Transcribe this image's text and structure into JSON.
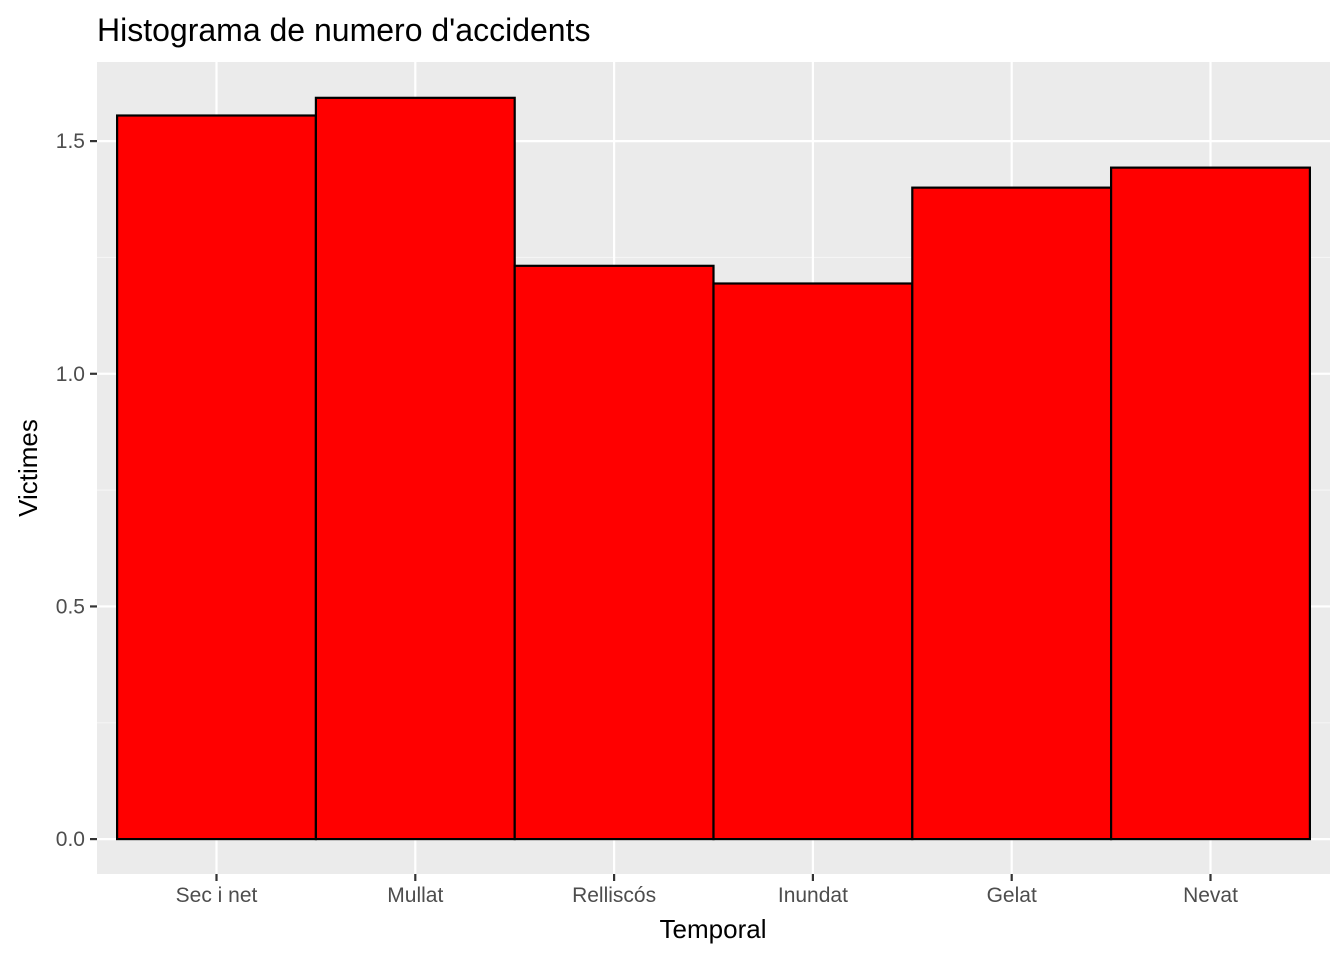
{
  "chart_data": {
    "type": "bar",
    "title": "Histograma de numero d'accidents",
    "xlabel": "Temporal",
    "ylabel": "Victimes",
    "categories": [
      "Sec i net",
      "Mullat",
      "Relliscós",
      "Inundat",
      "Gelat",
      "Nevat"
    ],
    "values": [
      1.555,
      1.593,
      1.232,
      1.194,
      1.4,
      1.443
    ],
    "ylim": [
      -0.075,
      1.67
    ],
    "yticks": [
      0.0,
      0.5,
      1.0,
      1.5
    ],
    "ytick_labels": [
      "0.0",
      "0.5",
      "1.0",
      "1.5"
    ],
    "grid": true,
    "colors": {
      "bar_fill": "#ff0000",
      "bar_stroke": "#000000",
      "panel_background": "#ebebeb",
      "grid_major": "#ffffff",
      "grid_minor": "#f5f5f5"
    }
  }
}
